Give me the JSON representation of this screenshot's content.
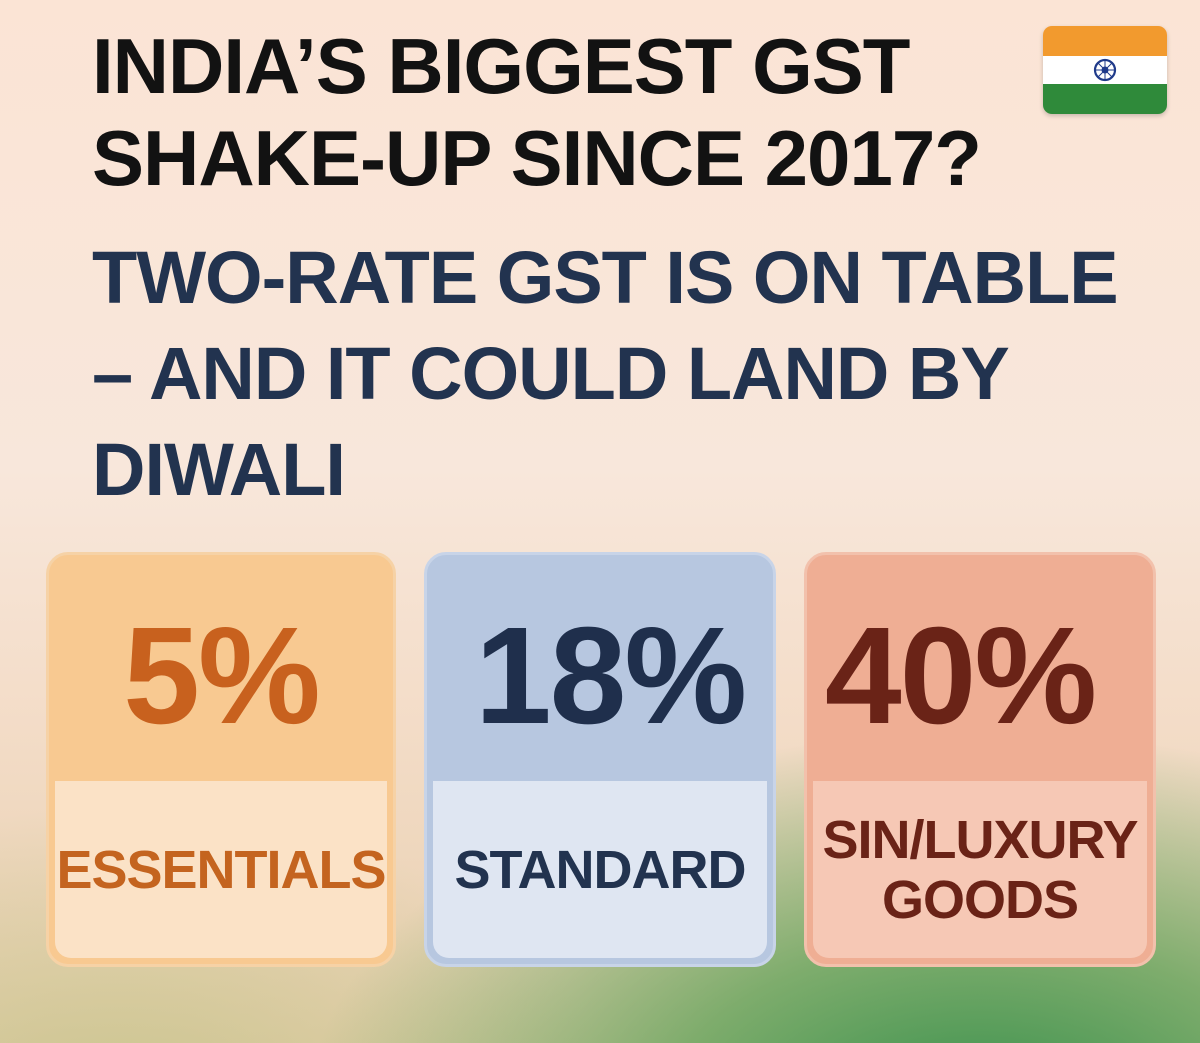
{
  "headline": "INDIA’S BIGGEST GST SHAKE-UP SINCE 2017?",
  "subheadline": "TWO-RATE GST IS ON TABLE – AND IT COULD LAND BY DIWALI",
  "flag": {
    "icon": "india-flag-icon",
    "colors": {
      "saffron": "#f29a2e",
      "white": "#ffffff",
      "green": "#2f8a3a",
      "chakra": "#1f3a8a"
    }
  },
  "cards": [
    {
      "rate": "5%",
      "label": "ESSENTIALS",
      "accent": "#c8611e"
    },
    {
      "rate": "18%",
      "label": "STANDARD",
      "accent": "#1f2f4c"
    },
    {
      "rate": "40%",
      "label": "SIN/LUXURY GOODS",
      "accent": "#6a2317"
    }
  ]
}
